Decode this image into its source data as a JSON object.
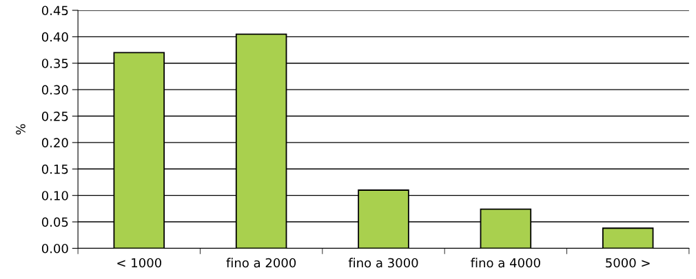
{
  "chart_data": {
    "type": "bar",
    "ylabel": "%",
    "categories": [
      "< 1000",
      "fino a 2000",
      "fino a 3000",
      "fino a 4000",
      "5000 >"
    ],
    "values": [
      0.37,
      0.405,
      0.11,
      0.074,
      0.038
    ],
    "color": "#a9d04e",
    "ylim": [
      0,
      0.45
    ],
    "yticks": [
      {
        "value": 0,
        "label": "0.00"
      },
      {
        "value": 0.05,
        "label": "0.05"
      },
      {
        "value": 0.1,
        "label": "0.10"
      },
      {
        "value": 0.15,
        "label": "0.15"
      },
      {
        "value": 0.2,
        "label": "0.20"
      },
      {
        "value": 0.25,
        "label": "0.25"
      },
      {
        "value": 0.3,
        "label": "0.30"
      },
      {
        "value": 0.35,
        "label": "0.35"
      },
      {
        "value": 0.4,
        "label": "0.40"
      },
      {
        "value": 0.45,
        "label": "0.45"
      }
    ],
    "grid": "y",
    "legend": false
  }
}
